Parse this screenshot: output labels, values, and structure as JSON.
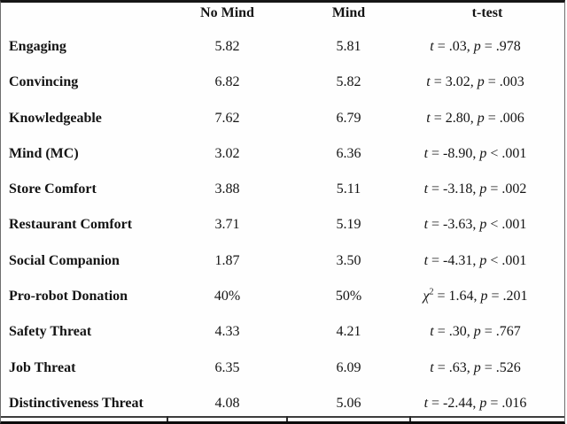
{
  "header": {
    "cols": [
      "",
      "No Mind",
      "Mind",
      "t-test"
    ]
  },
  "rows": [
    {
      "label": "Engaging",
      "no_mind": "5.82",
      "mind": "5.81",
      "test": [
        {
          "t": "t",
          "i": true
        },
        {
          "t": " = .03, "
        },
        {
          "t": "p",
          "i": true
        },
        {
          "t": " = .978"
        }
      ]
    },
    {
      "label": "Convincing",
      "no_mind": "6.82",
      "mind": "5.82",
      "test": [
        {
          "t": "t",
          "i": true
        },
        {
          "t": " = 3.02, "
        },
        {
          "t": "p",
          "i": true
        },
        {
          "t": " = .003"
        }
      ]
    },
    {
      "label": "Knowledgeable",
      "no_mind": "7.62",
      "mind": "6.79",
      "test": [
        {
          "t": "t",
          "i": true
        },
        {
          "t": " = 2.80, "
        },
        {
          "t": "p",
          "i": true
        },
        {
          "t": " = .006"
        }
      ]
    },
    {
      "label": "Mind (MC)",
      "no_mind": "3.02",
      "mind": "6.36",
      "test": [
        {
          "t": "t",
          "i": true
        },
        {
          "t": " = -8.90, "
        },
        {
          "t": "p",
          "i": true
        },
        {
          "t": " < .001"
        }
      ]
    },
    {
      "label": "Store Comfort",
      "no_mind": "3.88",
      "mind": "5.11",
      "test": [
        {
          "t": "t",
          "i": true
        },
        {
          "t": " = -3.18, "
        },
        {
          "t": "p",
          "i": true
        },
        {
          "t": " = .002"
        }
      ]
    },
    {
      "label": "Restaurant Comfort",
      "no_mind": "3.71",
      "mind": "5.19",
      "test": [
        {
          "t": "t",
          "i": true
        },
        {
          "t": " = -3.63, "
        },
        {
          "t": "p",
          "i": true
        },
        {
          "t": " < .001"
        }
      ]
    },
    {
      "label": "Social Companion",
      "no_mind": "1.87",
      "mind": "3.50",
      "test": [
        {
          "t": "t",
          "i": true
        },
        {
          "t": " = -4.31, "
        },
        {
          "t": "p",
          "i": true
        },
        {
          "t": " < .001"
        }
      ]
    },
    {
      "label": "Pro-robot Donation",
      "no_mind": "40%",
      "mind": "50%",
      "test": [
        {
          "t": "χ",
          "i": true
        },
        {
          "t": "2",
          "sup": true
        },
        {
          "t": " = 1.64, "
        },
        {
          "t": "p",
          "i": true
        },
        {
          "t": " = .201"
        }
      ]
    },
    {
      "label": "Safety Threat",
      "no_mind": "4.33",
      "mind": "4.21",
      "test": [
        {
          "t": "t",
          "i": true
        },
        {
          "t": " = .30, "
        },
        {
          "t": "p",
          "i": true
        },
        {
          "t": " = .767"
        }
      ]
    },
    {
      "label": "Job Threat",
      "no_mind": "6.35",
      "mind": "6.09",
      "test": [
        {
          "t": "t",
          "i": true
        },
        {
          "t": " = .63, "
        },
        {
          "t": "p",
          "i": true
        },
        {
          "t": " = .526"
        }
      ]
    },
    {
      "label": "Distinctiveness Threat",
      "no_mind": "4.08",
      "mind": "5.06",
      "test": [
        {
          "t": "t",
          "i": true
        },
        {
          "t": " = -2.44, "
        },
        {
          "t": "p",
          "i": true
        },
        {
          "t": " = .016"
        }
      ]
    }
  ]
}
